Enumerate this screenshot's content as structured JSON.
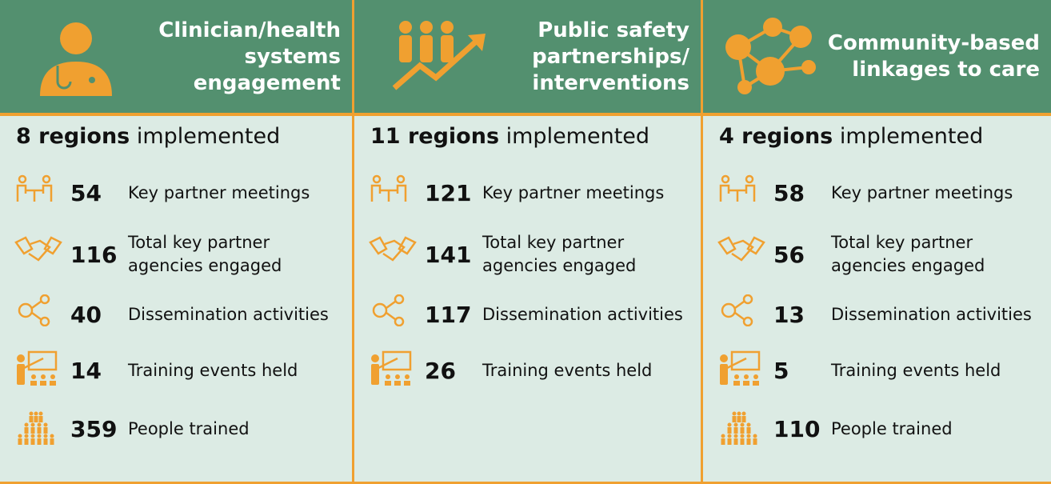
{
  "columns": [
    {
      "title": "Clinician/health systems engagement",
      "regions": "8 regions",
      "regions_text": "implemented",
      "metrics": [
        {
          "value": 54,
          "label": "Key partner meetings"
        },
        {
          "value": 116,
          "label": "Total key partner agencies engaged"
        },
        {
          "value": 40,
          "label": "Dissemination activities"
        },
        {
          "value": 14,
          "label": "Training events held"
        },
        {
          "value": 359,
          "label": "People trained"
        }
      ]
    },
    {
      "title": "Public safety partnerships/ interventions",
      "regions": "11 regions",
      "regions_text": "implemented",
      "metrics": [
        {
          "value": 121,
          "label": "Key partner meetings"
        },
        {
          "value": 141,
          "label": "Total key partner agencies engaged"
        },
        {
          "value": 117,
          "label": "Dissemination activities"
        },
        {
          "value": 26,
          "label": "Training events held"
        }
      ]
    },
    {
      "title": "Community-based linkages to care",
      "regions": "4 regions",
      "regions_text": "implemented",
      "metrics": [
        {
          "value": 58,
          "label": "Key partner meetings"
        },
        {
          "value": 56,
          "label": "Total key partner agencies engaged"
        },
        {
          "value": 13,
          "label": "Dissemination activities"
        },
        {
          "value": 5,
          "label": "Training events held"
        },
        {
          "value": 110,
          "label": "People trained"
        }
      ]
    }
  ]
}
